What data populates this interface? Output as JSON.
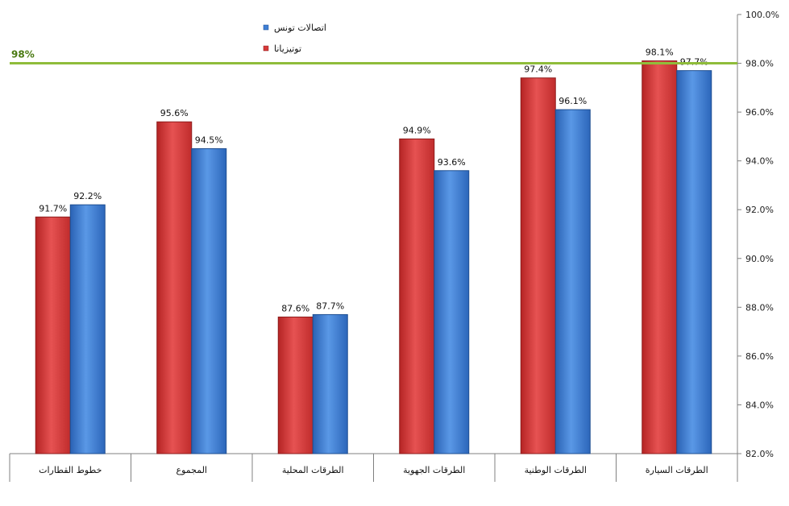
{
  "chart_data": {
    "type": "bar",
    "categories": [
      "خطوط القطارات",
      "المجموع",
      "الطرقات المحلية",
      "الطرقات الجهوية",
      "الطرقات الوطنية",
      "الطرقات السيارة"
    ],
    "series": [
      {
        "name": "توتيزيانا",
        "color": "#d63a3a",
        "values": [
          91.7,
          95.6,
          87.6,
          94.9,
          97.4,
          98.1
        ]
      },
      {
        "name": "اتصالات تونس",
        "color": "#3f7fd4",
        "values": [
          92.2,
          94.5,
          87.7,
          93.6,
          96.1,
          97.7
        ]
      }
    ],
    "data_labels": [
      [
        "91.7%",
        "95.6%",
        "87.6%",
        "94.9%",
        "97.4%",
        "98.1%"
      ],
      [
        "92.2%",
        "94.5%",
        "87.7%",
        "93.6%",
        "96.1%",
        "97.7%"
      ]
    ],
    "ylim": [
      82,
      100
    ],
    "yticks": [
      82,
      84,
      86,
      88,
      90,
      92,
      94,
      96,
      98,
      100
    ],
    "ytick_labels": [
      "82.0%",
      "84.0%",
      "86.0%",
      "88.0%",
      "90.0%",
      "92.0%",
      "94.0%",
      "96.0%",
      "98.0%",
      "100.0%"
    ],
    "y_axis_side": "right",
    "reference_line": {
      "value": 98,
      "label": "98%",
      "color": "#8fbc3a"
    },
    "legend": {
      "placement": "top-left-center",
      "order": [
        "اتصالات تونس",
        "توتيزيانا"
      ]
    },
    "grid": false
  }
}
